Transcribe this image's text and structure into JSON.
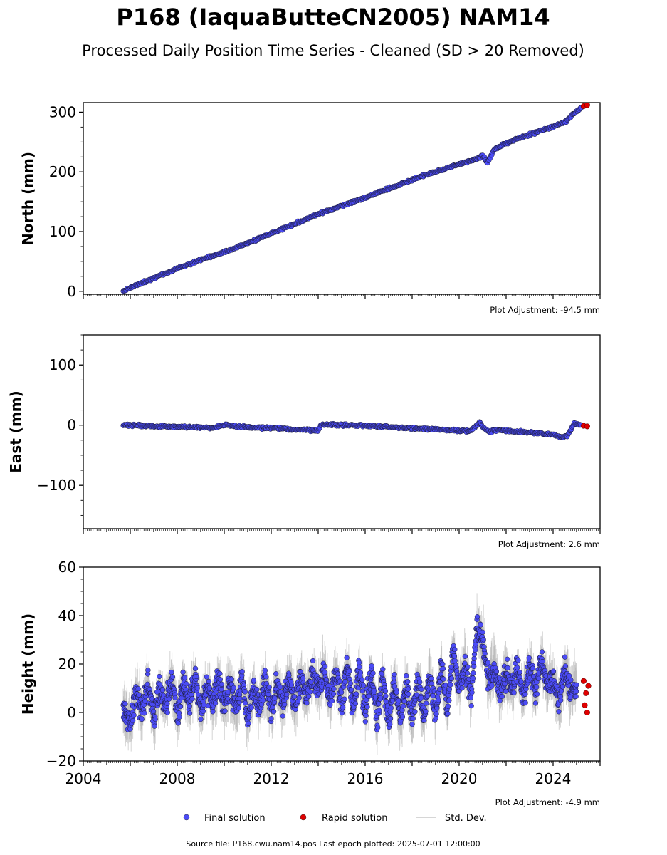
{
  "title": "P168 (IaquaButteCN2005) NAM14",
  "subtitle": "Processed Daily Position Time Series - Cleaned (SD > 20 Removed)",
  "footer": "Source file: P168.cwu.nam14.pos  Last epoch plotted: 2025-07-01 12:00:00",
  "colors": {
    "final": "#4b4bf5",
    "rapid": "#e00000",
    "std": "#b0b0b0"
  },
  "legend": {
    "placement": "bottom-center",
    "items": [
      {
        "label": "Final solution",
        "color": "#4b4bf5",
        "marker": "dot"
      },
      {
        "label": "Rapid solution",
        "color": "#e00000",
        "marker": "dot"
      },
      {
        "label": "Std. Dev.",
        "color": "#b0b0b0",
        "marker": "line"
      }
    ]
  },
  "chart_data": [
    {
      "type": "scatter",
      "ylabel": "North (mm)",
      "adjustment": "Plot Adjustment: -94.5 mm",
      "xlim": [
        2004.0,
        2026.0
      ],
      "ylim": [
        -5,
        316
      ],
      "yticks": [
        0,
        100,
        200,
        300
      ],
      "x_tick_labels_shown": false,
      "series": [
        {
          "name": "Final solution",
          "x": [
            2005.7,
            2006.0,
            2006.5,
            2007.0,
            2007.5,
            2008.0,
            2008.5,
            2009.0,
            2009.5,
            2010.0,
            2010.5,
            2011.0,
            2011.5,
            2012.0,
            2012.5,
            2013.0,
            2013.5,
            2014.0,
            2014.5,
            2015.0,
            2015.5,
            2016.0,
            2016.5,
            2017.0,
            2017.5,
            2018.0,
            2018.5,
            2019.0,
            2019.5,
            2020.0,
            2020.5,
            2020.9,
            2021.0,
            2021.2,
            2021.5,
            2022.0,
            2022.5,
            2023.0,
            2023.5,
            2024.0,
            2024.5,
            2024.9,
            2025.2
          ],
          "y": [
            0,
            6,
            14,
            22,
            30,
            38,
            45,
            53,
            59,
            66,
            73,
            81,
            89,
            97,
            105,
            113,
            121,
            129,
            136,
            143,
            150,
            157,
            165,
            172,
            179,
            187,
            194,
            200,
            206,
            213,
            219,
            224,
            228,
            215,
            238,
            248,
            256,
            262,
            270,
            276,
            283,
            298,
            308
          ]
        },
        {
          "name": "Rapid solution",
          "x": [
            2025.3,
            2025.45
          ],
          "y": [
            310,
            312
          ]
        }
      ]
    },
    {
      "type": "scatter",
      "ylabel": "East (mm)",
      "adjustment": "Plot Adjustment: 2.6 mm",
      "xlim": [
        2004.0,
        2026.0
      ],
      "ylim": [
        -172,
        150
      ],
      "yticks": [
        -100,
        0,
        100
      ],
      "x_tick_labels_shown": false,
      "series": [
        {
          "name": "Final solution",
          "x": [
            2005.7,
            2006.0,
            2006.5,
            2007.0,
            2007.5,
            2008.0,
            2008.5,
            2009.0,
            2009.5,
            2010.0,
            2010.5,
            2011.0,
            2011.5,
            2012.0,
            2012.5,
            2013.0,
            2013.5,
            2014.0,
            2014.1,
            2014.5,
            2015.0,
            2015.5,
            2016.0,
            2016.5,
            2017.0,
            2017.5,
            2018.0,
            2018.5,
            2019.0,
            2019.5,
            2020.0,
            2020.5,
            2020.9,
            2021.0,
            2021.3,
            2021.5,
            2022.0,
            2022.5,
            2023.0,
            2023.5,
            2024.0,
            2024.3,
            2024.6,
            2024.9,
            2025.2
          ],
          "y": [
            0,
            0,
            -1,
            -2,
            -2,
            -3,
            -3,
            -4,
            -5,
            1,
            -2,
            -3,
            -4,
            -5,
            -6,
            -7,
            -8,
            -9,
            0,
            1,
            0,
            0,
            -1,
            -2,
            -3,
            -4,
            -5,
            -6,
            -7,
            -8,
            -9,
            -10,
            5,
            -3,
            -12,
            -8,
            -9,
            -11,
            -12,
            -14,
            -16,
            -20,
            -18,
            2,
            0
          ]
        },
        {
          "name": "Rapid solution",
          "x": [
            2025.3,
            2025.45
          ],
          "y": [
            -1,
            -2
          ]
        }
      ]
    },
    {
      "type": "scatter",
      "ylabel": "Height (mm)",
      "adjustment": "Plot Adjustment: -4.9 mm",
      "xlim": [
        2004.0,
        2026.0
      ],
      "ylim": [
        -20,
        60
      ],
      "yticks": [
        -20,
        0,
        20,
        40,
        60
      ],
      "xticks": [
        2004,
        2008,
        2012,
        2016,
        2020,
        2024
      ],
      "series": [
        {
          "name": "Final solution",
          "x": [
            2005.7,
            2006.0,
            2006.25,
            2006.5,
            2006.75,
            2007.0,
            2007.25,
            2007.5,
            2007.75,
            2008.0,
            2008.25,
            2008.5,
            2008.75,
            2009.0,
            2009.25,
            2009.5,
            2009.75,
            2010.0,
            2010.25,
            2010.5,
            2010.75,
            2011.0,
            2011.25,
            2011.5,
            2011.75,
            2012.0,
            2012.25,
            2012.5,
            2012.75,
            2013.0,
            2013.25,
            2013.5,
            2013.75,
            2014.0,
            2014.25,
            2014.5,
            2014.75,
            2015.0,
            2015.25,
            2015.5,
            2015.75,
            2016.0,
            2016.25,
            2016.5,
            2016.75,
            2017.0,
            2017.25,
            2017.5,
            2017.75,
            2018.0,
            2018.25,
            2018.5,
            2018.75,
            2019.0,
            2019.25,
            2019.5,
            2019.75,
            2020.0,
            2020.25,
            2020.5,
            2020.75,
            2021.0,
            2021.25,
            2021.5,
            2021.75,
            2022.0,
            2022.25,
            2022.5,
            2022.75,
            2023.0,
            2023.25,
            2023.5,
            2023.75,
            2024.0,
            2024.25,
            2024.5,
            2024.75,
            2025.0
          ],
          "y": [
            2,
            -5,
            8,
            0,
            12,
            -3,
            10,
            2,
            14,
            -2,
            12,
            3,
            15,
            0,
            12,
            4,
            14,
            2,
            12,
            0,
            14,
            -4,
            10,
            2,
            13,
            1,
            12,
            3,
            15,
            2,
            14,
            6,
            16,
            8,
            18,
            4,
            16,
            5,
            20,
            2,
            18,
            0,
            17,
            -3,
            15,
            -5,
            14,
            -4,
            12,
            -3,
            14,
            -2,
            15,
            0,
            18,
            2,
            25,
            10,
            20,
            5,
            35,
            30,
            12,
            18,
            8,
            16,
            10,
            18,
            6,
            20,
            8,
            22,
            10,
            14,
            5,
            18,
            8,
            12
          ]
        },
        {
          "name": "Rapid solution",
          "x": [
            2025.3,
            2025.35,
            2025.4,
            2025.45,
            2025.5
          ],
          "y": [
            13,
            3,
            8,
            0,
            11
          ]
        }
      ]
    }
  ]
}
